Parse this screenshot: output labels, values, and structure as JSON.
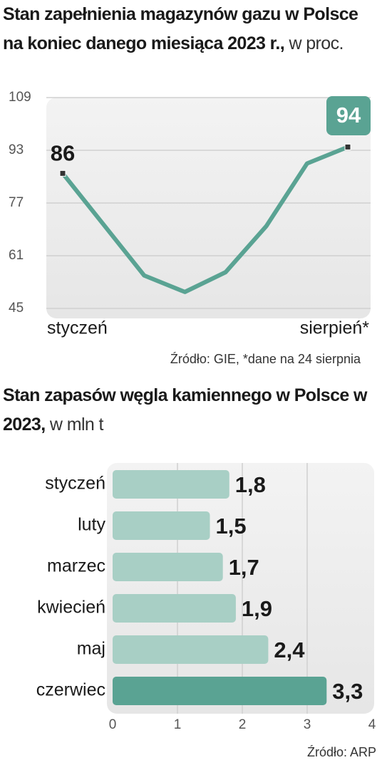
{
  "chart_data": [
    {
      "type": "line",
      "title": "Stan zapełnienia magazynów gazu w Polsce na koniec danego miesiąca 2023 r.,",
      "unit": "w proc.",
      "categories": [
        "styczeń",
        null,
        null,
        null,
        null,
        null,
        null,
        "sierpień*"
      ],
      "values": [
        86,
        70.5,
        55,
        50,
        56,
        70,
        89,
        94
      ],
      "value_labels": [
        "86",
        null,
        null,
        null,
        null,
        null,
        null,
        "94"
      ],
      "color": "#5aa393",
      "ylim": [
        45,
        109
      ],
      "yticks": [
        45,
        61,
        77,
        93,
        109
      ],
      "grid": true,
      "source": "Źródło: GIE, *dane na 24 sierpnia"
    },
    {
      "type": "hbar",
      "title": "Stan zapasów węgla kamiennego w Polsce w 2023,",
      "unit": "w mln t",
      "categories": [
        "styczeń",
        "luty",
        "marzec",
        "kwiecień",
        "maj",
        "czerwiec"
      ],
      "values": [
        1.8,
        1.5,
        1.7,
        1.9,
        2.4,
        3.3
      ],
      "value_labels": [
        "1,8",
        "1,5",
        "1,7",
        "1,9",
        "2,4",
        "3,3"
      ],
      "colors": [
        "#a8cfc5",
        "#a8cfc5",
        "#a8cfc5",
        "#a8cfc5",
        "#a8cfc5",
        "#5aa393"
      ],
      "xlim": [
        0,
        4
      ],
      "xticks": [
        0,
        1,
        2,
        3,
        4
      ],
      "grid": true,
      "source": "Źródło: ARP"
    }
  ]
}
